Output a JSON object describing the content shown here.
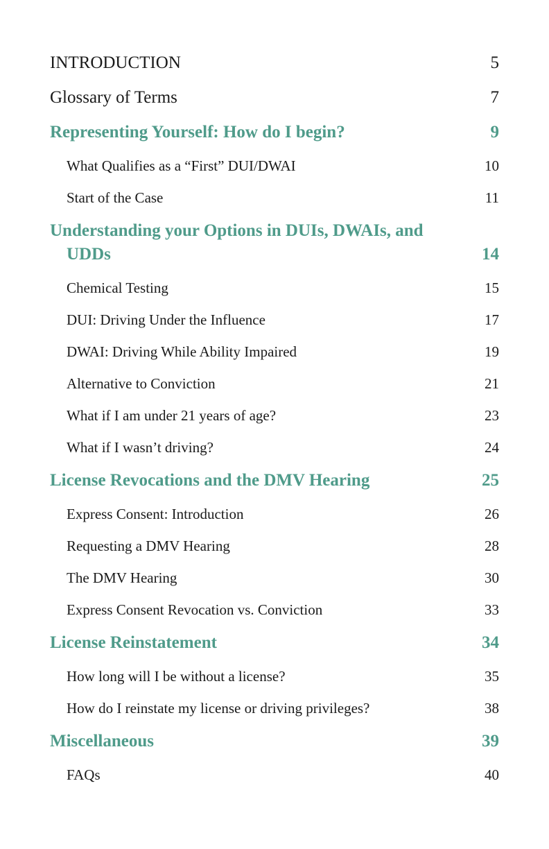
{
  "toc": {
    "intro": {
      "title": "INTRODUCTION",
      "page": "5"
    },
    "glossary": {
      "title": "Glossary of Terms",
      "page": "7"
    },
    "s1": {
      "title": "Representing Yourself: How do I begin?",
      "page": "9",
      "items": [
        {
          "title": "What Qualifies as a “First” DUI/DWAI",
          "page": "10"
        },
        {
          "title": "Start of the Case",
          "page": "11"
        }
      ]
    },
    "s2": {
      "title_line1": "Understanding your Options in DUIs, DWAIs, and",
      "title_line2": "UDDs",
      "page": "14",
      "items": [
        {
          "title": "Chemical Testing",
          "page": "15"
        },
        {
          "title": "DUI: Driving Under the Influence",
          "page": "17"
        },
        {
          "title": "DWAI: Driving While Ability Impaired",
          "page": "19"
        },
        {
          "title": "Alternative to Conviction",
          "page": "21"
        },
        {
          "title": "What if I am under 21 years of age?",
          "page": "23"
        },
        {
          "title": "What if I wasn’t driving?",
          "page": "24"
        }
      ]
    },
    "s3": {
      "title": "License Revocations and the DMV Hearing",
      "page": "25",
      "items": [
        {
          "title": "Express Consent: Introduction",
          "page": "26"
        },
        {
          "title": "Requesting a DMV Hearing",
          "page": "28"
        },
        {
          "title": "The DMV Hearing",
          "page": "30"
        },
        {
          "title": "Express Consent Revocation vs. Conviction",
          "page": "33"
        }
      ]
    },
    "s4": {
      "title": "License Reinstatement",
      "page": "34",
      "items": [
        {
          "title": "How long will I be without a license?",
          "page": "35"
        },
        {
          "title": "How do I reinstate my license or driving privileges?",
          "page": "38"
        }
      ]
    },
    "s5": {
      "title": "Miscellaneous",
      "page": "39",
      "items": [
        {
          "title": "FAQs",
          "page": "40"
        }
      ]
    }
  },
  "colors": {
    "section_heading": "#4f9b8a",
    "text": "#1a1a1a",
    "background": "#ffffff"
  }
}
